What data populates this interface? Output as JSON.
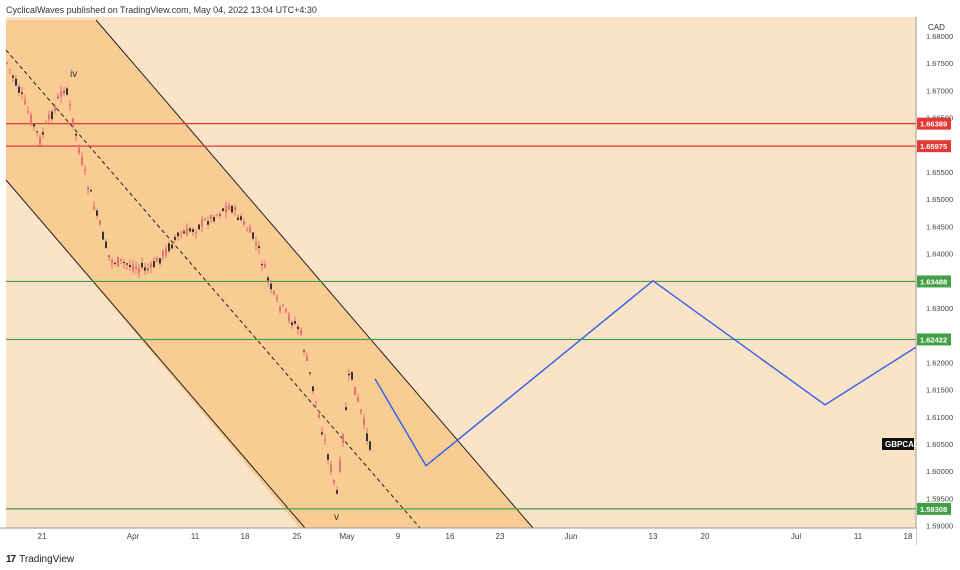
{
  "header": {
    "publisher_text": "CyclicalWaves published on TradingView.com, May 04, 2022 13:04 UTC+4:30"
  },
  "footer": {
    "brand": "TradingView",
    "logo_text": "17"
  },
  "chart_data": {
    "type": "line",
    "symbol": "GBPCAD",
    "currency": "CAD",
    "background_color": "#FBE3C8",
    "channel_fill_color": "#F8C98E",
    "projection_color": "#3A66E6",
    "y_axis_ticks": [
      "1.68000",
      "1.67500",
      "1.67000",
      "1.66500",
      "1.65500",
      "1.65000",
      "1.64500",
      "1.64000",
      "1.63000",
      "1.62000",
      "1.61500",
      "1.61000",
      "1.60500",
      "1.60000",
      "1.59500",
      "1.59000"
    ],
    "x_axis_ticks": [
      "21",
      "Apr",
      "11",
      "18",
      "25",
      "May",
      "9",
      "16",
      "23",
      "Jun",
      "13",
      "20",
      "Jul",
      "11",
      "18"
    ],
    "horizontal_levels": [
      {
        "value": 1.66389,
        "label": "1.66389",
        "color": "#E53935"
      },
      {
        "value": 1.65975,
        "label": "1.65975",
        "color": "#E53935"
      },
      {
        "value": 1.63488,
        "label": "1.63488",
        "color": "#43A047"
      },
      {
        "value": 1.62422,
        "label": "1.62422",
        "color": "#43A047"
      },
      {
        "value": 1.59308,
        "label": "1.59308",
        "color": "#43A047"
      }
    ],
    "wave_labels": [
      "iv",
      "v"
    ],
    "projection_path": [
      {
        "x": "May 6",
        "y": 1.617
      },
      {
        "x": "May 12",
        "y": 1.601
      },
      {
        "x": "Jun 13",
        "y": 1.635
      },
      {
        "x": "Jul 6",
        "y": 1.6122
      },
      {
        "x": "Jul 21",
        "y": 1.6228
      }
    ]
  }
}
